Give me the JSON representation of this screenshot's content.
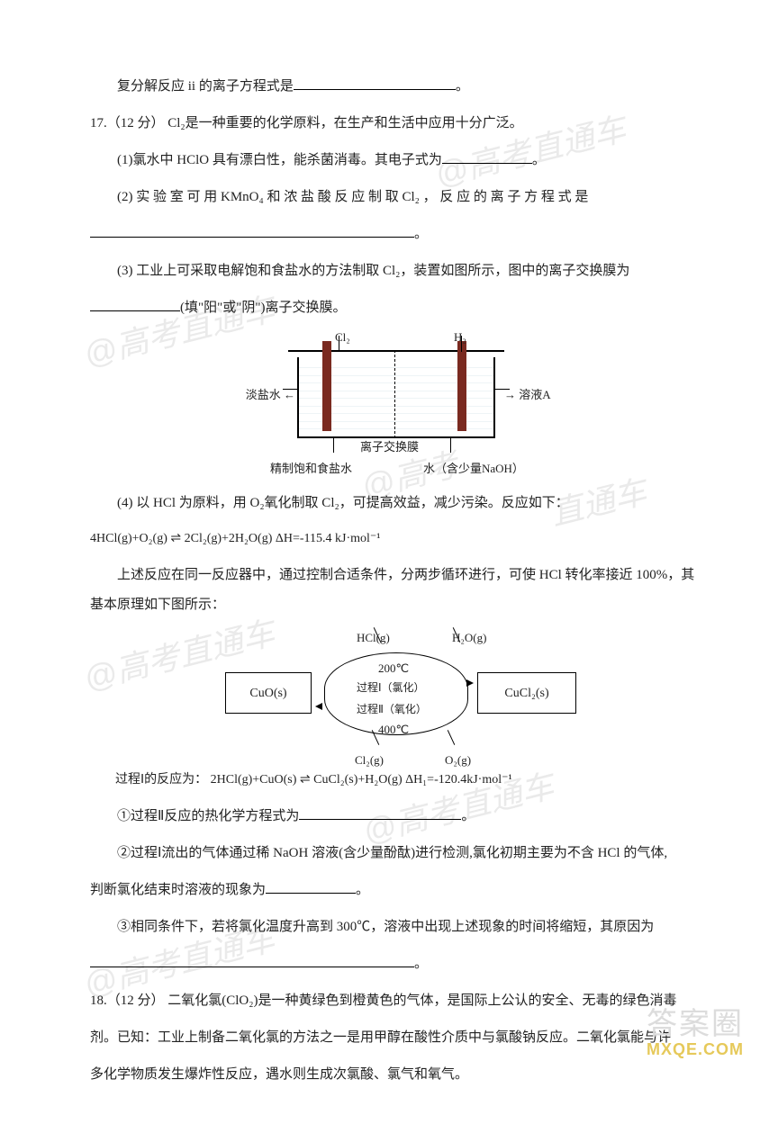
{
  "watermark_text": "@高考直通车",
  "q16": {
    "line": "复分解反应 ii 的离子方程式是",
    "period": "。"
  },
  "q17": {
    "head": "17.（12 分） Cl₂是一种重要的化学原料，在生产和生活中应用十分广泛。",
    "p1": "(1)氯水中 HClO 具有漂白性，能杀菌消毒。其电子式为",
    "p1_tail": "。",
    "p2": "(2) 实 验 室 可 用 KMnO₄ 和 浓 盐 酸 反 应 制 取 Cl₂ ， 反 应 的 离 子 方 程 式 是",
    "p2_tail": "。",
    "p3a": "(3) 工业上可采取电解饱和食盐水的方法制取 Cl₂，装置如图所示，图中的离子交换膜为",
    "p3b": "(填\"阳\"或\"阴\")离子交换膜。",
    "diagram1": {
      "cl2": "Cl₂",
      "h2": "H₂",
      "diluted": "淡盐水",
      "solA": "溶液A",
      "membrane": "离子交换膜",
      "bottom_left": "精制饱和食盐水",
      "bottom_right": "水（含少量NaOH）",
      "electrode_color": "#7a2a20"
    },
    "p4a": "(4)  以 HCl 为原料，用 O₂氧化制取 Cl₂，可提高效益，减少污染。反应如下：",
    "eq": "4HCl(g)+O₂(g) ⇌ 2Cl₂(g)+2H₂O(g)   ΔH=-115.4 kJ·mol⁻¹",
    "p4b": "上述反应在同一反应器中，通过控制合适条件，分两步循环进行，可使 HCl 转化率接近 100%，其基本原理如下图所示：",
    "diagram2": {
      "cuo": "CuO(s)",
      "cucl2": "CuCl₂(s)",
      "hcl": "HCl(g)",
      "h2o": "H₂O(g)",
      "t200": "200℃",
      "t400": "400℃",
      "proc1": "过程Ⅰ（氯化）",
      "proc2": "过程Ⅱ（氧化）",
      "cl2": "Cl₂(g)",
      "o2": "O₂(g)"
    },
    "proc1_eq": "过程Ⅰ的反应为：  2HCl(g)+CuO(s) ⇌ CuCl₂(s)+H₂O(g)  ΔH₁=-120.4kJ·mol⁻¹",
    "s1": "①过程Ⅱ反应的热化学方程式为",
    "s1_tail": "。",
    "s2a": "②过程Ⅰ流出的气体通过稀 NaOH 溶液(含少量酚酞)进行检测,氯化初期主要为不含 HCl 的气体,",
    "s2b": "判断氯化结束时溶液的现象为",
    "s2_tail": "。",
    "s3a": "③相同条件下，若将氯化温度升高到 300℃，溶液中出现上述现象的时间将缩短，其原因为",
    "s3_tail": "。"
  },
  "q18": {
    "head": "18.（12 分） 二氧化氯(ClO₂)是一种黄绿色到橙黄色的气体，是国际上公认的安全、无毒的绿色消毒",
    "line2": "剂。已知：工业上制备二氧化氯的方法之一是用甲醇在酸性介质中与氯酸钠反应。二氧化氯能与许",
    "line3": "多化学物质发生爆炸性反应，遇水则生成次氯酸、氯气和氧气。"
  },
  "footer": {
    "top": "答案圈",
    "bot": "MXQE.COM"
  },
  "colors": {
    "text": "#222222",
    "background": "#ffffff",
    "watermark": "#eaeaea",
    "footer_top": "#dcdcdc",
    "footer_bot": "#e6c95a"
  }
}
